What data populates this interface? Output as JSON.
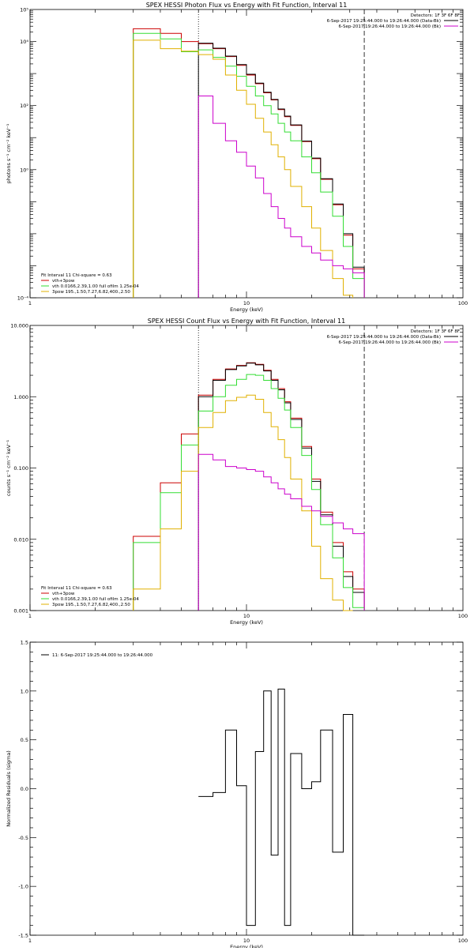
{
  "colors": {
    "total": "#000000",
    "fit": "#cc0000",
    "vth": "#33dd33",
    "bpow": "#e0b000",
    "background": "#cc00cc"
  },
  "chart_data": [
    {
      "type": "line",
      "title": "SPEX HESSI Photon Flux vs Energy with Fit Function, Interval 11",
      "xlabel": "Energy (keV)",
      "ylabel": "photons s⁻¹ cm⁻² keV⁻¹",
      "xscale": "log",
      "yscale": "log",
      "xlim": [
        1,
        100
      ],
      "ylim": [
        0.0001,
        100000
      ],
      "xticks": [
        {
          "v": 1,
          "label": "1"
        },
        {
          "v": 10,
          "label": "10"
        },
        {
          "v": 100,
          "label": "100"
        }
      ],
      "yticks": [
        {
          "v": 100000,
          "label": "10⁵"
        },
        {
          "v": 10000,
          "label": "10⁴"
        },
        {
          "v": 100,
          "label": "10²"
        },
        {
          "v": 1,
          "label": "10⁰"
        },
        {
          "v": 0.0001,
          "label": "10⁻⁴"
        }
      ],
      "vlines": [
        {
          "x": 6,
          "style": "dotted"
        },
        {
          "x": 35,
          "style": "dashed"
        }
      ],
      "detectors": "Detectors: 1F 3F 6F 8F",
      "legend_right": [
        {
          "text": "6-Sep-2017 19:25:44.000 to 19:26:44.000 (Data-Bk)",
          "series": "total"
        },
        {
          "text": "6-Sep-2017 19:26:44.000 to 19:26:44.000 (Bk)",
          "series": "background"
        }
      ],
      "legend_left": [
        {
          "text": "Fit Interval 11   Chi-square = 0.63",
          "series": null
        },
        {
          "text": "vth+3pow",
          "series": "fit"
        },
        {
          "text": "vth 0.0166,2.39,1.00  full ofilm 1.25e-04",
          "series": "vth"
        },
        {
          "text": "3pow 195.,1.50,7.27,6.82,400.,2.50",
          "series": "bpow"
        }
      ],
      "x_edges": [
        3,
        4,
        5,
        6,
        7,
        8,
        9,
        10,
        11,
        12,
        13,
        14,
        15,
        16,
        18,
        20,
        22,
        25,
        28,
        31,
        35
      ],
      "series": [
        {
          "key": "fit",
          "values": [
            25000,
            18000,
            10000,
            8500,
            6000,
            3400,
            1800,
            900,
            480,
            250,
            150,
            75,
            45,
            24,
            7.5,
            2.2,
            0.5,
            0.08,
            0.009,
            0.0008
          ]
        },
        {
          "key": "total",
          "values": [
            null,
            null,
            null,
            8800,
            6200,
            3500,
            1900,
            950,
            500,
            260,
            155,
            78,
            47,
            25,
            7.8,
            2.3,
            0.52,
            0.085,
            0.01,
            0.0009
          ]
        },
        {
          "key": "vth",
          "values": [
            18000,
            12000,
            4800,
            5500,
            3200,
            1700,
            820,
            400,
            200,
            100,
            55,
            28,
            15,
            8,
            2.5,
            0.8,
            0.2,
            0.035,
            0.004,
            0.0004
          ]
        },
        {
          "key": "bpow",
          "values": [
            11000,
            6000,
            5000,
            3900,
            2800,
            900,
            300,
            110,
            40,
            15,
            6,
            2.5,
            1,
            0.3,
            0.07,
            0.015,
            0.003,
            0.0004,
            0.00012,
            null
          ]
        },
        {
          "key": "background",
          "values": [
            null,
            null,
            null,
            200,
            28,
            8,
            3.5,
            1.3,
            0.55,
            0.18,
            0.07,
            0.03,
            0.015,
            0.008,
            0.004,
            0.0025,
            0.0015,
            0.001,
            0.0008,
            0.0006
          ]
        }
      ]
    },
    {
      "type": "line",
      "title": "SPEX HESSI Count Flux vs Energy with Fit Function, Interval 11",
      "xlabel": "Energy (keV)",
      "ylabel": "counts s⁻¹ cm⁻² keV⁻¹",
      "xscale": "log",
      "yscale": "log",
      "xlim": [
        1,
        100
      ],
      "ylim": [
        0.001,
        10
      ],
      "xticks": [
        {
          "v": 1,
          "label": "1"
        },
        {
          "v": 10,
          "label": "10"
        },
        {
          "v": 100,
          "label": "100"
        }
      ],
      "yticks": [
        {
          "v": 10,
          "label": "10.000"
        },
        {
          "v": 1,
          "label": "1.000"
        },
        {
          "v": 0.1,
          "label": "0.100"
        },
        {
          "v": 0.01,
          "label": "0.010"
        },
        {
          "v": 0.001,
          "label": "0.001"
        }
      ],
      "vlines": [
        {
          "x": 6,
          "style": "dotted"
        },
        {
          "x": 35,
          "style": "dashed"
        }
      ],
      "detectors": "Detectors: 1F 3F 6F 8F",
      "legend_right": [
        {
          "text": "6-Sep-2017 19:25:44.000 to 19:26:44.000 (Data-Bk)",
          "series": "total"
        },
        {
          "text": "6-Sep-2017 19:26:44.000 to 19:26:44.000 (Bk)",
          "series": "background"
        }
      ],
      "legend_left": [
        {
          "text": "Fit Interval 11   Chi-square = 0.63",
          "series": null
        },
        {
          "text": "vth+3pow",
          "series": "fit"
        },
        {
          "text": "vth 0.0166,2.39,1.00  full ofilm 1.25e-04",
          "series": "vth"
        },
        {
          "text": "3pow 195.,1.50,7.27,6.82,400.,2.50",
          "series": "bpow"
        }
      ],
      "x_edges": [
        3,
        4,
        5,
        6,
        7,
        8,
        9,
        10,
        11,
        12,
        13,
        14,
        15,
        16,
        18,
        20,
        22,
        25,
        28,
        31,
        35
      ],
      "series": [
        {
          "key": "fit",
          "values": [
            0.011,
            0.062,
            0.3,
            1.05,
            1.75,
            2.45,
            2.75,
            3.0,
            2.85,
            2.35,
            1.75,
            1.3,
            0.85,
            0.5,
            0.2,
            0.07,
            0.024,
            0.009,
            0.0035,
            0.002
          ]
        },
        {
          "key": "total",
          "values": [
            null,
            null,
            null,
            1.0,
            1.7,
            2.4,
            2.7,
            2.95,
            2.8,
            2.3,
            1.7,
            1.25,
            0.82,
            0.48,
            0.19,
            0.065,
            0.022,
            0.008,
            0.003,
            0.0018
          ]
        },
        {
          "key": "vth",
          "values": [
            0.009,
            0.045,
            0.21,
            0.63,
            1.0,
            1.45,
            1.75,
            2.05,
            2.0,
            1.7,
            1.3,
            0.95,
            0.65,
            0.37,
            0.15,
            0.05,
            0.016,
            0.0055,
            0.0021,
            0.0011
          ]
        },
        {
          "key": "bpow",
          "values": [
            0.002,
            0.014,
            0.09,
            0.37,
            0.6,
            0.88,
            0.98,
            1.05,
            0.92,
            0.6,
            0.38,
            0.25,
            0.14,
            0.07,
            0.025,
            0.008,
            0.0028,
            0.0014,
            0.001,
            null
          ]
        },
        {
          "key": "background",
          "values": [
            null,
            null,
            null,
            0.155,
            0.13,
            0.105,
            0.1,
            0.095,
            0.09,
            0.075,
            0.062,
            0.051,
            0.043,
            0.037,
            0.029,
            0.025,
            0.021,
            0.017,
            0.014,
            0.012
          ]
        }
      ]
    },
    {
      "type": "line",
      "title": "",
      "xlabel": "Energy (keV)",
      "ylabel": "Normalized Residuals (sigma)",
      "xscale": "log",
      "yscale": "linear",
      "xlim": [
        1,
        100
      ],
      "ylim": [
        -1.5,
        1.5
      ],
      "xticks": [
        {
          "v": 1,
          "label": "1"
        },
        {
          "v": 10,
          "label": "10"
        },
        {
          "v": 100,
          "label": "100"
        }
      ],
      "yticks": [
        {
          "v": 1.5,
          "label": "1.5"
        },
        {
          "v": 1.0,
          "label": "1.0"
        },
        {
          "v": 0.5,
          "label": "0.5"
        },
        {
          "v": 0.0,
          "label": "0.0"
        },
        {
          "v": -0.5,
          "label": "-0.5"
        },
        {
          "v": -1.0,
          "label": "-1.0"
        },
        {
          "v": -1.5,
          "label": "-1.5"
        }
      ],
      "legend_left": [
        {
          "text": "11: 6-Sep-2017 19:25:44.000 to 19:26:44.000",
          "series": "total"
        }
      ],
      "x_edges": [
        6,
        7,
        8,
        9,
        10,
        11,
        12,
        13,
        14,
        15,
        16,
        18,
        20,
        22,
        25,
        28,
        31,
        35
      ],
      "series": [
        {
          "key": "total",
          "values": [
            -0.08,
            -0.04,
            0.6,
            0.03,
            -1.4,
            0.38,
            1.0,
            -0.68,
            1.02,
            -1.4,
            0.36,
            0.0,
            0.07,
            0.6,
            -0.65,
            0.76,
            -1.5
          ]
        }
      ]
    }
  ]
}
